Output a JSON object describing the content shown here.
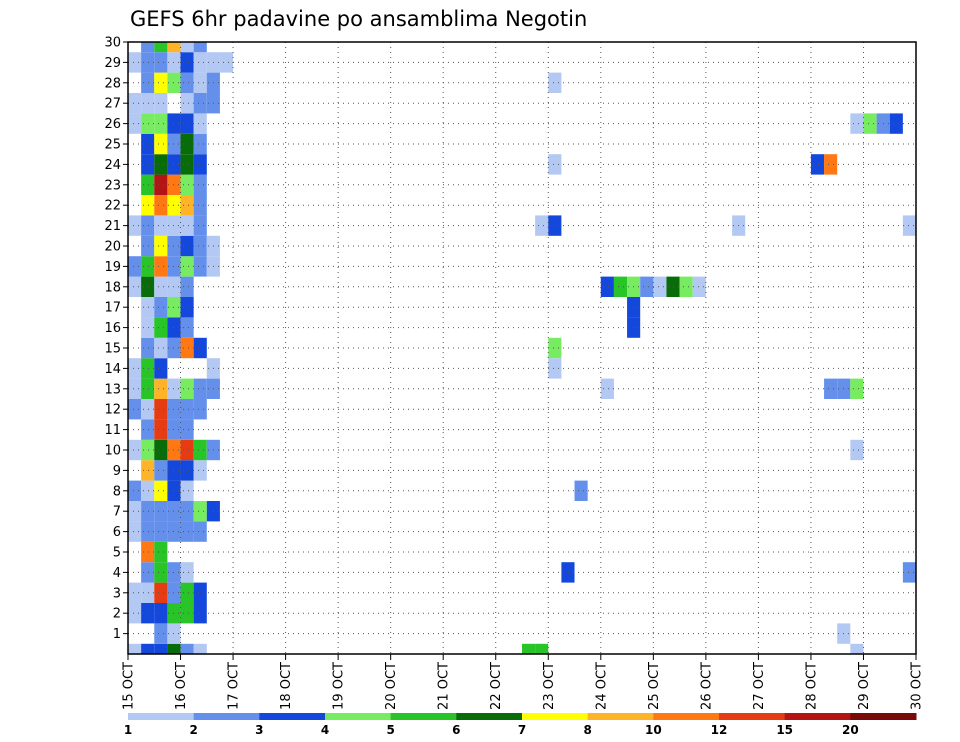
{
  "chart_data": {
    "type": "heatmap",
    "title": "GEFS 6hr padavine po ansamblima Negotin",
    "xlabel": "",
    "ylabel": "",
    "x_tick_labels": [
      "15 OCT",
      "16 OCT",
      "17 OCT",
      "18 OCT",
      "19 OCT",
      "20 OCT",
      "21 OCT",
      "22 OCT",
      "23 OCT",
      "24 OCT",
      "25 OCT",
      "26 OCT",
      "27 OCT",
      "28 OCT",
      "29 OCT",
      "30 OCT"
    ],
    "y_tick_labels": [
      "1",
      "2",
      "3",
      "4",
      "5",
      "6",
      "7",
      "8",
      "9",
      "10",
      "11",
      "12",
      "13",
      "14",
      "15",
      "16",
      "17",
      "18",
      "19",
      "20",
      "21",
      "22",
      "23",
      "24",
      "25",
      "26",
      "27",
      "28",
      "29",
      "30"
    ],
    "xlim_days": [
      15,
      30
    ],
    "ylim_member": [
      0,
      30
    ],
    "time_step_hours": 6,
    "grid": true,
    "legend_position": "bottom",
    "levels": [
      "1",
      "2",
      "3",
      "4",
      "5",
      "6",
      "7",
      "8",
      "10",
      "12",
      "15",
      "20"
    ],
    "level_colors": [
      "#b4c8f4",
      "#6490ec",
      "#1448dc",
      "#78ec60",
      "#28c428",
      "#086c08",
      "#ffff00",
      "#ffb428",
      "#ff7814",
      "#e63c14",
      "#b41414",
      "#780a0a"
    ],
    "cells_note": "each cell: [member, day of October at period start, class index 1-12]",
    "cells": [
      [
        0,
        15.0,
        1
      ],
      [
        0,
        15.25,
        3
      ],
      [
        0,
        15.5,
        3
      ],
      [
        0,
        15.75,
        6
      ],
      [
        0,
        16.0,
        2
      ],
      [
        0,
        16.25,
        1
      ],
      [
        1,
        15.5,
        2
      ],
      [
        1,
        15.75,
        1
      ],
      [
        2,
        15.0,
        1
      ],
      [
        2,
        15.25,
        3
      ],
      [
        2,
        15.5,
        3
      ],
      [
        2,
        15.75,
        5
      ],
      [
        2,
        16.0,
        5
      ],
      [
        2,
        16.25,
        3
      ],
      [
        3,
        15.0,
        1
      ],
      [
        3,
        15.25,
        1
      ],
      [
        3,
        15.5,
        10
      ],
      [
        3,
        15.75,
        2
      ],
      [
        3,
        16.0,
        5
      ],
      [
        3,
        16.25,
        3
      ],
      [
        4,
        15.25,
        2
      ],
      [
        4,
        15.5,
        5
      ],
      [
        4,
        15.75,
        2
      ],
      [
        4,
        16.0,
        1
      ],
      [
        5,
        15.25,
        9
      ],
      [
        5,
        15.5,
        5
      ],
      [
        6,
        15.0,
        1
      ],
      [
        6,
        15.25,
        2
      ],
      [
        6,
        15.5,
        2
      ],
      [
        6,
        15.75,
        2
      ],
      [
        6,
        16.0,
        2
      ],
      [
        6,
        16.25,
        2
      ],
      [
        7,
        15.0,
        1
      ],
      [
        7,
        15.25,
        2
      ],
      [
        7,
        15.5,
        2
      ],
      [
        7,
        15.75,
        2
      ],
      [
        7,
        16.0,
        2
      ],
      [
        7,
        16.25,
        4
      ],
      [
        7,
        16.5,
        3
      ],
      [
        8,
        15.0,
        2
      ],
      [
        8,
        15.25,
        1
      ],
      [
        8,
        15.5,
        7
      ],
      [
        8,
        15.75,
        3
      ],
      [
        8,
        16.0,
        1
      ],
      [
        9,
        15.25,
        8
      ],
      [
        9,
        15.5,
        2
      ],
      [
        9,
        15.75,
        3
      ],
      [
        9,
        16.0,
        3
      ],
      [
        9,
        16.25,
        1
      ],
      [
        10,
        15.0,
        1
      ],
      [
        10,
        15.25,
        4
      ],
      [
        10,
        15.5,
        6
      ],
      [
        10,
        15.75,
        9
      ],
      [
        10,
        16.0,
        10
      ],
      [
        10,
        16.25,
        5
      ],
      [
        10,
        16.5,
        2
      ],
      [
        11,
        15.25,
        2
      ],
      [
        11,
        15.5,
        10
      ],
      [
        11,
        15.75,
        2
      ],
      [
        11,
        16.0,
        2
      ],
      [
        12,
        15.0,
        2
      ],
      [
        12,
        15.25,
        1
      ],
      [
        12,
        15.5,
        10
      ],
      [
        12,
        15.75,
        2
      ],
      [
        12,
        16.0,
        2
      ],
      [
        12,
        16.25,
        2
      ],
      [
        13,
        15.0,
        1
      ],
      [
        13,
        15.25,
        5
      ],
      [
        13,
        15.5,
        8
      ],
      [
        13,
        15.75,
        1
      ],
      [
        13,
        16.0,
        4
      ],
      [
        13,
        16.25,
        2
      ],
      [
        13,
        16.5,
        2
      ],
      [
        14,
        15.0,
        1
      ],
      [
        14,
        15.25,
        5
      ],
      [
        14,
        15.5,
        3
      ],
      [
        14,
        16.5,
        1
      ],
      [
        15,
        15.25,
        2
      ],
      [
        15,
        15.5,
        1
      ],
      [
        15,
        15.75,
        2
      ],
      [
        15,
        16.0,
        9
      ],
      [
        15,
        16.25,
        3
      ],
      [
        16,
        15.25,
        1
      ],
      [
        16,
        15.5,
        5
      ],
      [
        16,
        15.75,
        3
      ],
      [
        16,
        16.0,
        2
      ],
      [
        17,
        15.25,
        1
      ],
      [
        17,
        15.5,
        2
      ],
      [
        17,
        15.75,
        4
      ],
      [
        17,
        16.0,
        3
      ],
      [
        18,
        15.0,
        1
      ],
      [
        18,
        15.25,
        6
      ],
      [
        18,
        15.5,
        1
      ],
      [
        18,
        15.75,
        1
      ],
      [
        18,
        16.0,
        2
      ],
      [
        19,
        15.0,
        2
      ],
      [
        19,
        15.25,
        5
      ],
      [
        19,
        15.5,
        9
      ],
      [
        19,
        15.75,
        2
      ],
      [
        19,
        16.0,
        4
      ],
      [
        19,
        16.25,
        2
      ],
      [
        19,
        16.5,
        1
      ],
      [
        20,
        15.25,
        2
      ],
      [
        20,
        15.5,
        7
      ],
      [
        20,
        15.75,
        2
      ],
      [
        20,
        16.0,
        3
      ],
      [
        20,
        16.25,
        2
      ],
      [
        20,
        16.5,
        1
      ],
      [
        21,
        15.0,
        1
      ],
      [
        21,
        15.25,
        2
      ],
      [
        21,
        15.5,
        1
      ],
      [
        21,
        15.75,
        1
      ],
      [
        21,
        16.0,
        1
      ],
      [
        21,
        16.25,
        2
      ],
      [
        22,
        15.25,
        7
      ],
      [
        22,
        15.5,
        9
      ],
      [
        22,
        15.75,
        7
      ],
      [
        22,
        16.0,
        8
      ],
      [
        22,
        16.25,
        2
      ],
      [
        23,
        15.25,
        5
      ],
      [
        23,
        15.5,
        11
      ],
      [
        23,
        15.75,
        9
      ],
      [
        23,
        16.0,
        4
      ],
      [
        23,
        16.25,
        2
      ],
      [
        24,
        15.25,
        3
      ],
      [
        24,
        15.5,
        6
      ],
      [
        24,
        15.75,
        3
      ],
      [
        24,
        16.0,
        6
      ],
      [
        24,
        16.25,
        3
      ],
      [
        25,
        15.25,
        3
      ],
      [
        25,
        15.5,
        7
      ],
      [
        25,
        15.75,
        2
      ],
      [
        25,
        16.0,
        6
      ],
      [
        25,
        16.25,
        2
      ],
      [
        26,
        15.0,
        1
      ],
      [
        26,
        15.25,
        4
      ],
      [
        26,
        15.5,
        4
      ],
      [
        26,
        15.75,
        3
      ],
      [
        26,
        16.0,
        3
      ],
      [
        26,
        16.25,
        1
      ],
      [
        27,
        15.0,
        1
      ],
      [
        27,
        15.25,
        1
      ],
      [
        27,
        15.5,
        1
      ],
      [
        27,
        16.0,
        1
      ],
      [
        27,
        16.25,
        2
      ],
      [
        27,
        16.5,
        2
      ],
      [
        28,
        15.25,
        2
      ],
      [
        28,
        15.5,
        7
      ],
      [
        28,
        15.75,
        4
      ],
      [
        28,
        16.0,
        2
      ],
      [
        28,
        16.25,
        1
      ],
      [
        28,
        16.5,
        2
      ],
      [
        29,
        15.0,
        1
      ],
      [
        29,
        15.25,
        2
      ],
      [
        29,
        15.5,
        2
      ],
      [
        29,
        15.75,
        1
      ],
      [
        29,
        16.0,
        3
      ],
      [
        29,
        16.25,
        1
      ],
      [
        29,
        16.5,
        1
      ],
      [
        29,
        16.75,
        1
      ],
      [
        30,
        15.25,
        2
      ],
      [
        30,
        15.5,
        5
      ],
      [
        30,
        15.75,
        8
      ],
      [
        30,
        16.0,
        1
      ],
      [
        30,
        16.25,
        2
      ],
      [
        0,
        22.5,
        5
      ],
      [
        0,
        22.75,
        5
      ],
      [
        28,
        23.0,
        1
      ],
      [
        24,
        23.0,
        1
      ],
      [
        21,
        22.75,
        1
      ],
      [
        21,
        23.0,
        3
      ],
      [
        15,
        23.0,
        4
      ],
      [
        14,
        23.0,
        1
      ],
      [
        4,
        23.25,
        3
      ],
      [
        8,
        23.5,
        2
      ],
      [
        13,
        24.0,
        1
      ],
      [
        18,
        24.0,
        3
      ],
      [
        18,
        24.25,
        5
      ],
      [
        18,
        24.5,
        4
      ],
      [
        18,
        24.75,
        2
      ],
      [
        18,
        25.0,
        1
      ],
      [
        18,
        25.25,
        6
      ],
      [
        18,
        25.5,
        4
      ],
      [
        18,
        25.75,
        1
      ],
      [
        17,
        24.5,
        3
      ],
      [
        16,
        24.5,
        3
      ],
      [
        21,
        26.5,
        1
      ],
      [
        24,
        28.0,
        3
      ],
      [
        24,
        28.25,
        9
      ],
      [
        13,
        28.25,
        2
      ],
      [
        13,
        28.5,
        2
      ],
      [
        13,
        28.75,
        4
      ],
      [
        1,
        28.5,
        1
      ],
      [
        10,
        28.75,
        1
      ],
      [
        0,
        28.75,
        1
      ],
      [
        26,
        28.75,
        1
      ],
      [
        26,
        29.0,
        4
      ],
      [
        26,
        29.25,
        2
      ],
      [
        26,
        29.5,
        3
      ],
      [
        21,
        29.75,
        1
      ],
      [
        4,
        29.75,
        2
      ]
    ]
  }
}
